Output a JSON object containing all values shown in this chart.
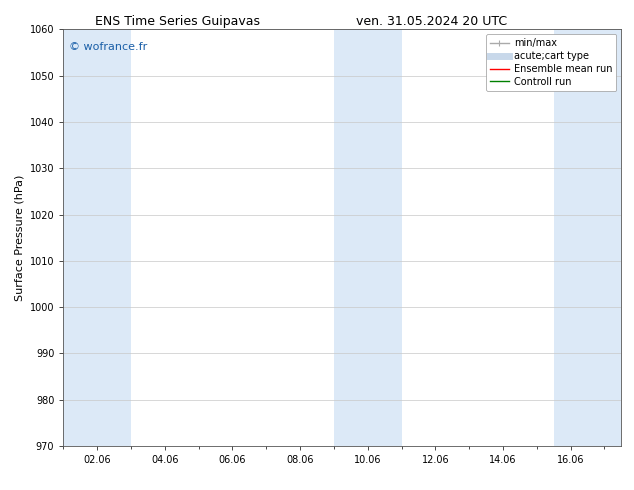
{
  "title_left": "ENS Time Series Guipavas",
  "title_right": "ven. 31.05.2024 20 UTC",
  "ylabel": "Surface Pressure (hPa)",
  "ylim": [
    970,
    1060
  ],
  "yticks": [
    970,
    980,
    990,
    1000,
    1010,
    1020,
    1030,
    1040,
    1050,
    1060
  ],
  "xlim": [
    0,
    16.5
  ],
  "xtick_positions": [
    1,
    3,
    5,
    7,
    9,
    11,
    13,
    15
  ],
  "xtick_labels": [
    "02.06",
    "04.06",
    "06.06",
    "08.06",
    "10.06",
    "12.06",
    "14.06",
    "16.06"
  ],
  "watermark": "© wofrance.fr",
  "watermark_color": "#1a5fa8",
  "bg_color": "#ffffff",
  "plot_bg_color": "#ffffff",
  "shaded_bands": [
    {
      "x_start": 0.0,
      "x_end": 2.0
    },
    {
      "x_start": 8.0,
      "x_end": 10.0
    },
    {
      "x_start": 14.5,
      "x_end": 16.5
    }
  ],
  "shade_color": "#dce9f7",
  "grid_color": "#c8c8c8",
  "legend_entries": [
    {
      "label": "min/max",
      "color": "#aaaaaa",
      "lw": 1.0,
      "style": "errorbar"
    },
    {
      "label": "acute;cart type",
      "color": "#c8d8ea",
      "lw": 5,
      "style": "solid"
    },
    {
      "label": "Ensemble mean run",
      "color": "#ff0000",
      "lw": 1.0,
      "style": "solid"
    },
    {
      "label": "Controll run",
      "color": "#008000",
      "lw": 1.0,
      "style": "solid"
    }
  ],
  "title_fontsize": 9,
  "axis_label_fontsize": 8,
  "tick_fontsize": 7,
  "watermark_fontsize": 8,
  "legend_fontsize": 7
}
